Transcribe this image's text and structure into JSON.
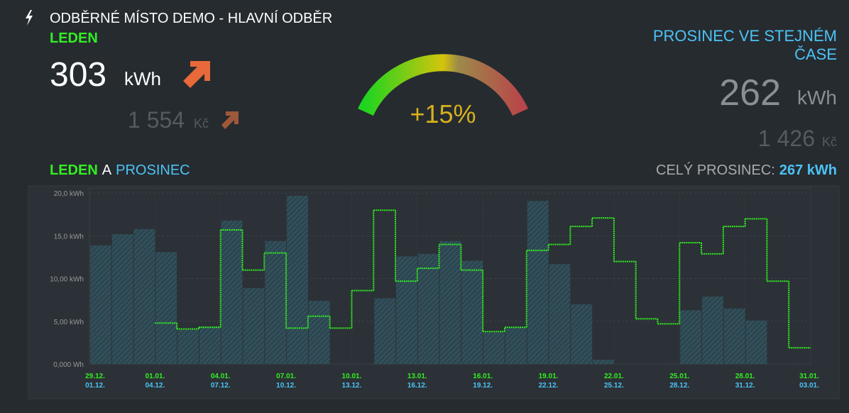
{
  "header": {
    "title": "ODBĚRNÉ MÍSTO DEMO - HLAVNÍ ODBĚR",
    "current": {
      "label": "LEDEN",
      "value": "303",
      "unit": "kWh",
      "cost": "1 554",
      "cost_unit": "Kč"
    },
    "gauge": {
      "label": "+15%"
    },
    "compare": {
      "label": "PROSINEC VE STEJNÉM ČASE",
      "value": "262",
      "unit": "kWh",
      "cost": "1 426",
      "cost_unit": "Kč"
    },
    "legend_joiner": "A",
    "total": {
      "label": "CELÝ PROSINEC:",
      "value": "267 kWh"
    }
  },
  "chart_data": {
    "type": "bar",
    "ylim": [
      0,
      20.6
    ],
    "yticks": [
      {
        "value": 0,
        "label": "0,000 Wh"
      },
      {
        "value": 5,
        "label": "5,00 kWh"
      },
      {
        "value": 10,
        "label": "10,00 kWh"
      },
      {
        "value": 15,
        "label": "15,0 kWh"
      },
      {
        "value": 20,
        "label": "20,0 kWh"
      }
    ],
    "grid": true,
    "x_labels": {
      "leden": [
        "29.12.",
        "01.01.",
        "04.01.",
        "07.01.",
        "10.01.",
        "13.01.",
        "16.01.",
        "19.01.",
        "22.01.",
        "25.01.",
        "28.01.",
        "31.01."
      ],
      "prosinec": [
        "01.12.",
        "04.12.",
        "07.12.",
        "10.12.",
        "13.12.",
        "16.12.",
        "19.12.",
        "22.12.",
        "25.12.",
        "28.12.",
        "31.12.",
        "03.01."
      ]
    },
    "series": [
      {
        "name": "PROSINEC",
        "type": "bar",
        "color": "#4cc3f5",
        "values": [
          13.9,
          15.2,
          15.8,
          13.1,
          4.0,
          4.4,
          16.8,
          8.9,
          14.4,
          19.7,
          7.4,
          0,
          0,
          7.7,
          12.6,
          12.9,
          14.4,
          12.1,
          3.7,
          4.3,
          19.1,
          11.7,
          7.0,
          0.5,
          0,
          0,
          0,
          6.3,
          7.9,
          6.5,
          5.1,
          null,
          null
        ]
      },
      {
        "name": "LEDEN",
        "type": "step",
        "color": "#33ee22",
        "values": [
          null,
          null,
          null,
          4.8,
          4.1,
          4.3,
          15.7,
          11.0,
          13.0,
          4.2,
          5.6,
          4.2,
          8.6,
          18.0,
          9.7,
          11.2,
          14.0,
          11.0,
          3.8,
          4.3,
          13.3,
          14.0,
          16.1,
          17.1,
          12.0,
          5.3,
          4.7,
          14.2,
          12.9,
          16.1,
          17.0,
          9.7,
          1.9
        ]
      }
    ]
  }
}
